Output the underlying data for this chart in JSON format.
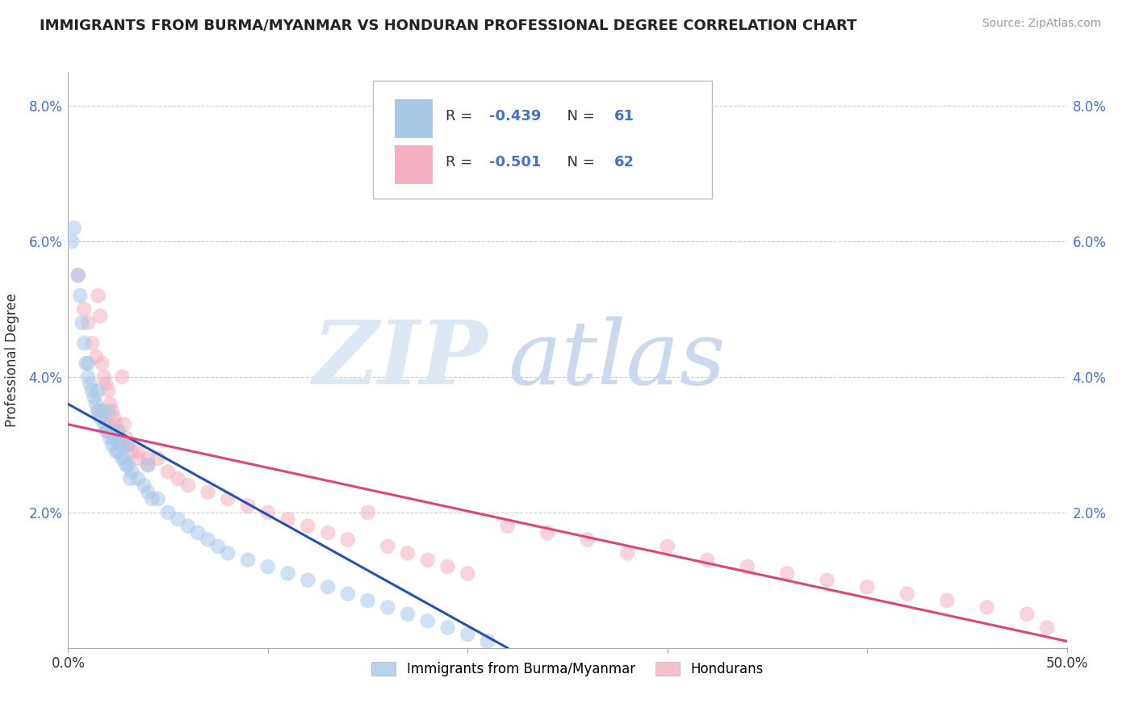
{
  "title": "IMMIGRANTS FROM BURMA/MYANMAR VS HONDURAN PROFESSIONAL DEGREE CORRELATION CHART",
  "source": "Source: ZipAtlas.com",
  "ylabel": "Professional Degree",
  "xlim": [
    0.0,
    50.0
  ],
  "ylim": [
    0.0,
    8.5
  ],
  "legend_r1": "-0.439",
  "legend_n1": "61",
  "legend_r2": "-0.501",
  "legend_n2": "62",
  "color_blue": "#a8c8e8",
  "color_pink": "#f4b0c0",
  "line_blue": "#2255aa",
  "line_pink": "#dd4477",
  "legend_label1": "Immigrants from Burma/Myanmar",
  "legend_label2": "Hondurans",
  "blue_x": [
    0.2,
    0.3,
    0.5,
    0.6,
    0.7,
    0.8,
    0.9,
    1.0,
    1.1,
    1.2,
    1.3,
    1.4,
    1.5,
    1.6,
    1.7,
    1.8,
    1.9,
    2.0,
    2.1,
    2.2,
    2.3,
    2.4,
    2.5,
    2.6,
    2.7,
    2.8,
    2.9,
    3.0,
    3.1,
    3.2,
    3.5,
    3.8,
    4.0,
    4.2,
    4.5,
    5.0,
    5.5,
    6.0,
    6.5,
    7.0,
    7.5,
    8.0,
    9.0,
    10.0,
    11.0,
    12.0,
    13.0,
    14.0,
    15.0,
    16.0,
    17.0,
    18.0,
    19.0,
    20.0,
    21.0,
    1.0,
    1.5,
    2.0,
    2.5,
    3.0,
    4.0
  ],
  "blue_y": [
    6.0,
    6.2,
    5.5,
    5.2,
    4.8,
    4.5,
    4.2,
    4.0,
    3.9,
    3.8,
    3.7,
    3.6,
    3.5,
    3.4,
    3.5,
    3.3,
    3.2,
    3.2,
    3.1,
    3.0,
    3.1,
    2.9,
    2.9,
    3.0,
    2.8,
    2.8,
    2.7,
    2.7,
    2.5,
    2.6,
    2.5,
    2.4,
    2.3,
    2.2,
    2.2,
    2.0,
    1.9,
    1.8,
    1.7,
    1.6,
    1.5,
    1.4,
    1.3,
    1.2,
    1.1,
    1.0,
    0.9,
    0.8,
    0.7,
    0.6,
    0.5,
    0.4,
    0.3,
    0.2,
    0.1,
    4.2,
    3.8,
    3.5,
    3.2,
    3.0,
    2.7
  ],
  "pink_x": [
    0.5,
    0.8,
    1.0,
    1.2,
    1.4,
    1.5,
    1.6,
    1.7,
    1.8,
    1.9,
    2.0,
    2.1,
    2.2,
    2.3,
    2.4,
    2.5,
    2.7,
    2.9,
    3.0,
    3.2,
    3.5,
    4.0,
    4.5,
    5.0,
    5.5,
    6.0,
    7.0,
    8.0,
    9.0,
    10.0,
    11.0,
    12.0,
    13.0,
    14.0,
    15.0,
    16.0,
    17.0,
    18.0,
    19.0,
    20.0,
    22.0,
    24.0,
    26.0,
    28.0,
    30.0,
    32.0,
    34.0,
    36.0,
    38.0,
    40.0,
    42.0,
    44.0,
    46.0,
    48.0,
    49.0,
    1.5,
    2.0,
    2.5,
    3.0,
    3.5,
    4.0,
    2.8
  ],
  "pink_y": [
    5.5,
    5.0,
    4.8,
    4.5,
    4.3,
    5.2,
    4.9,
    4.2,
    4.0,
    3.9,
    3.8,
    3.6,
    3.5,
    3.4,
    3.3,
    3.2,
    4.0,
    3.1,
    3.0,
    2.9,
    2.8,
    2.7,
    2.8,
    2.6,
    2.5,
    2.4,
    2.3,
    2.2,
    2.1,
    2.0,
    1.9,
    1.8,
    1.7,
    1.6,
    2.0,
    1.5,
    1.4,
    1.3,
    1.2,
    1.1,
    1.8,
    1.7,
    1.6,
    1.4,
    1.5,
    1.3,
    1.2,
    1.1,
    1.0,
    0.9,
    0.8,
    0.7,
    0.6,
    0.5,
    0.3,
    3.5,
    3.3,
    3.1,
    3.0,
    2.9,
    2.8,
    3.3
  ],
  "blue_line_x0": 0.0,
  "blue_line_y0": 3.6,
  "blue_line_x1": 22.0,
  "blue_line_y1": 0.0,
  "pink_line_x0": 0.0,
  "pink_line_y0": 3.3,
  "pink_line_x1": 50.0,
  "pink_line_y1": 0.1
}
